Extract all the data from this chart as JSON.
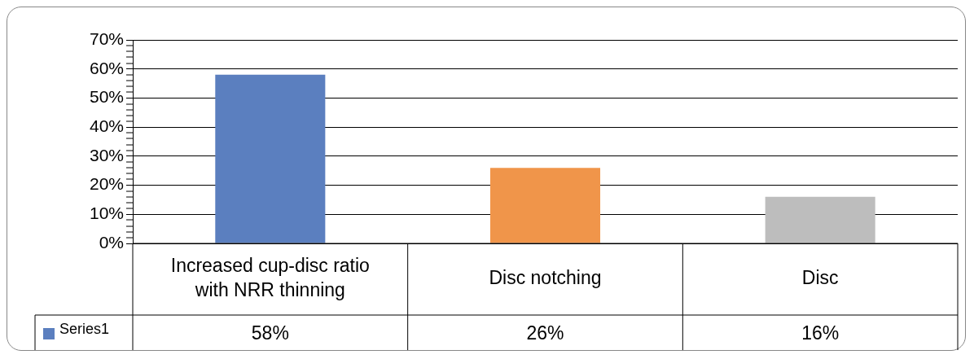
{
  "chart_data": {
    "type": "bar",
    "categories": [
      "Increased cup-disc ratio with NRR thinning",
      "Disc notching",
      "Disc"
    ],
    "series": [
      {
        "name": "Series1",
        "color": "#5b7fbf",
        "colors": [
          "#5b7fbf",
          "#f0954a",
          "#bdbdbd"
        ],
        "values": [
          58,
          26,
          16
        ],
        "value_labels": [
          "58%",
          "26%",
          "16%"
        ]
      }
    ],
    "ylim": [
      0,
      70
    ],
    "yticks": [
      {
        "value": 0,
        "label": "0%"
      },
      {
        "value": 2,
        "label": null
      },
      {
        "value": 4,
        "label": null
      },
      {
        "value": 6,
        "label": null
      },
      {
        "value": 8,
        "label": null
      },
      {
        "value": 10,
        "label": "10%"
      },
      {
        "value": 12,
        "label": null
      },
      {
        "value": 14,
        "label": null
      },
      {
        "value": 16,
        "label": null
      },
      {
        "value": 18,
        "label": null
      },
      {
        "value": 20,
        "label": "20%"
      },
      {
        "value": 22,
        "label": null
      },
      {
        "value": 24,
        "label": null
      },
      {
        "value": 26,
        "label": null
      },
      {
        "value": 28,
        "label": null
      },
      {
        "value": 30,
        "label": "30%"
      },
      {
        "value": 32,
        "label": null
      },
      {
        "value": 34,
        "label": null
      },
      {
        "value": 36,
        "label": null
      },
      {
        "value": 38,
        "label": null
      },
      {
        "value": 40,
        "label": "40%"
      },
      {
        "value": 42,
        "label": null
      },
      {
        "value": 44,
        "label": null
      },
      {
        "value": 46,
        "label": null
      },
      {
        "value": 48,
        "label": null
      },
      {
        "value": 50,
        "label": "50%"
      },
      {
        "value": 52,
        "label": null
      },
      {
        "value": 54,
        "label": null
      },
      {
        "value": 56,
        "label": null
      },
      {
        "value": 58,
        "label": null
      },
      {
        "value": 60,
        "label": "60%"
      },
      {
        "value": 62,
        "label": null
      },
      {
        "value": 64,
        "label": null
      },
      {
        "value": 66,
        "label": null
      },
      {
        "value": 68,
        "label": null
      },
      {
        "value": 70,
        "label": "70%"
      }
    ],
    "grid": "y",
    "legend": "bottom"
  }
}
